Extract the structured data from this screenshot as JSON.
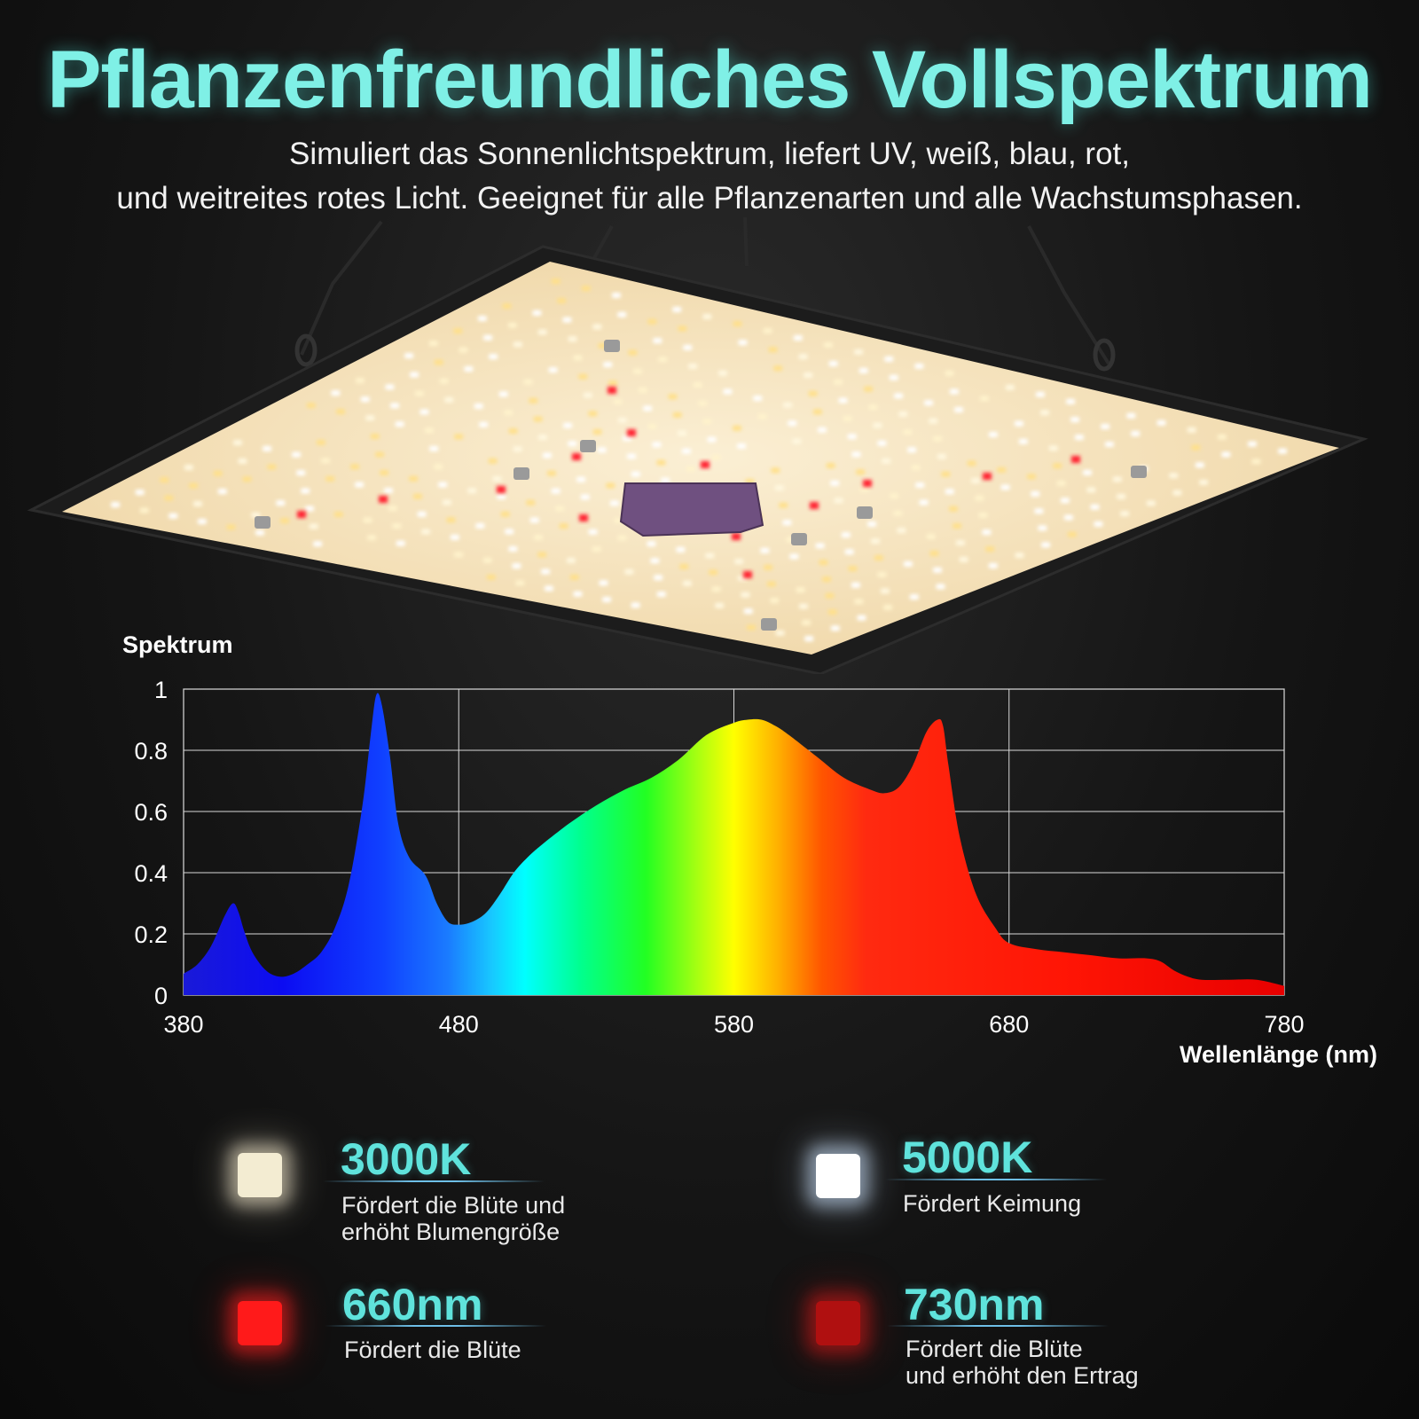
{
  "header": {
    "title": "Pflanzenfreundliches Vollspektrum",
    "subtitle_line1": "Simuliert das Sonnenlichtspektrum, liefert UV, weiß, blau, rot,",
    "subtitle_line2": "und weitreites rotes Licht. Geeignet für alle Pflanzenarten und alle Wachstumsphasen."
  },
  "chart_data": {
    "type": "area",
    "title": "Spektrum",
    "xlabel": "Wellenlänge (nm)",
    "ylabel": "",
    "xlim": [
      380,
      780
    ],
    "ylim": [
      0,
      1
    ],
    "x_ticks": [
      380,
      480,
      580,
      680,
      780
    ],
    "y_ticks": [
      "0",
      "0.2",
      "0.4",
      "0.6",
      "0.8",
      "1"
    ],
    "grid": true,
    "series": [
      {
        "x": [
          380,
          385,
          390,
          395,
          398,
          400,
          402,
          405,
          410,
          415,
          420,
          425,
          430,
          435,
          440,
          445,
          448,
          450,
          452,
          455,
          458,
          462,
          468,
          472,
          476,
          480,
          485,
          490,
          495,
          500,
          505,
          510,
          520,
          530,
          540,
          550,
          560,
          570,
          580,
          585,
          590,
          595,
          600,
          610,
          620,
          630,
          635,
          640,
          645,
          650,
          654,
          656,
          658,
          662,
          668,
          675,
          680,
          690,
          700,
          710,
          720,
          730,
          735,
          740,
          745,
          750,
          760,
          770,
          780
        ],
        "y": [
          0.07,
          0.1,
          0.16,
          0.26,
          0.3,
          0.27,
          0.21,
          0.14,
          0.08,
          0.06,
          0.07,
          0.1,
          0.14,
          0.22,
          0.36,
          0.62,
          0.85,
          0.98,
          0.95,
          0.78,
          0.56,
          0.45,
          0.39,
          0.3,
          0.24,
          0.23,
          0.24,
          0.27,
          0.33,
          0.4,
          0.45,
          0.49,
          0.56,
          0.62,
          0.67,
          0.71,
          0.77,
          0.85,
          0.89,
          0.9,
          0.9,
          0.88,
          0.85,
          0.78,
          0.71,
          0.67,
          0.66,
          0.68,
          0.75,
          0.86,
          0.9,
          0.88,
          0.75,
          0.52,
          0.33,
          0.22,
          0.17,
          0.15,
          0.14,
          0.13,
          0.12,
          0.12,
          0.11,
          0.08,
          0.06,
          0.05,
          0.05,
          0.05,
          0.03
        ]
      }
    ]
  },
  "legend": [
    {
      "heading": "3000K",
      "line1": "Fördert die Blüte und",
      "line2": "erhöht Blumengröße",
      "color": "#f3ecd2",
      "glow": "#fff4d6"
    },
    {
      "heading": "5000K",
      "line1": "Fördert Keimung",
      "line2": "",
      "color": "#ffffff",
      "glow": "#cfe4ff"
    },
    {
      "heading": "660nm",
      "line1": "Fördert die Blüte",
      "line2": "",
      "color": "#ff1a1a",
      "glow": "#ff2020"
    },
    {
      "heading": "730nm",
      "line1": "Fördert die Blüte",
      "line2": "und erhöht den Ertrag",
      "color": "#b01010",
      "glow": "#d01818"
    }
  ],
  "colors": {
    "accent": "#5fe3dc",
    "panel": "#f6e5c2",
    "frame": "#1a1a1a"
  }
}
